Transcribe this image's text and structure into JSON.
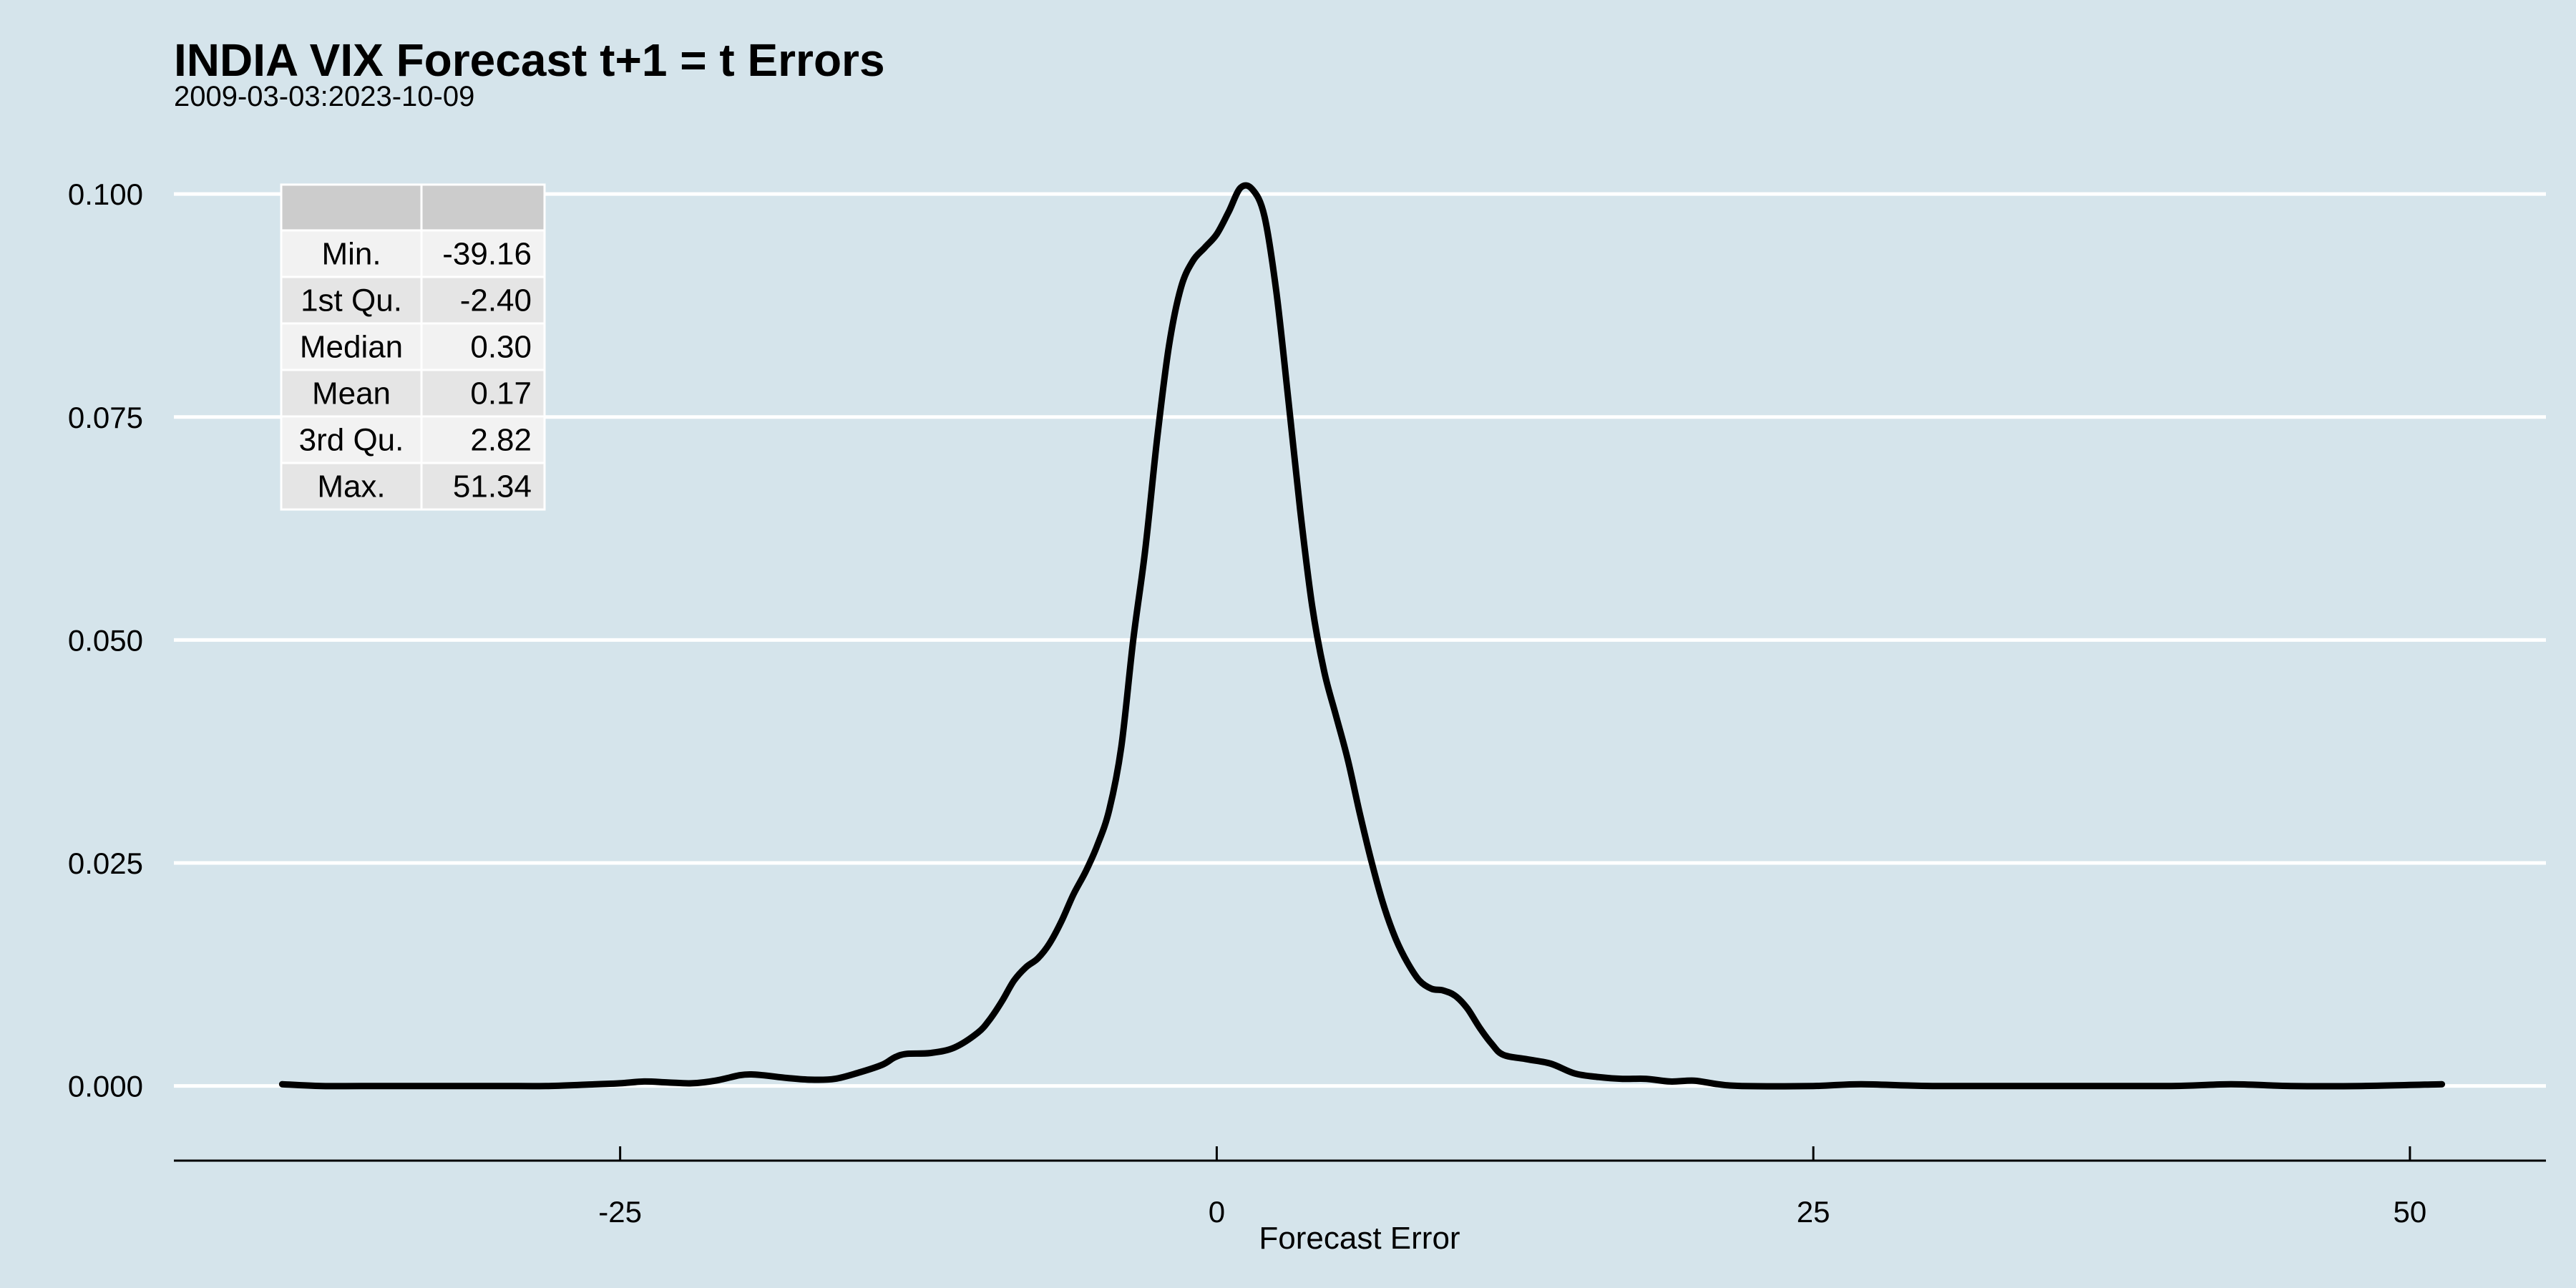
{
  "chart_data": {
    "type": "line",
    "title": "INDIA VIX Forecast t+1 = t Errors",
    "subtitle": "2009-03-03:2023-10-09",
    "xlabel": "Forecast Error",
    "ylabel": "",
    "xlim": [
      -43.7,
      55.7
    ],
    "ylim": [
      -0.005,
      0.1025
    ],
    "x_ticks": [
      -25,
      0,
      25,
      50
    ],
    "x_tick_labels": [
      "-25",
      "0",
      "25",
      "50"
    ],
    "y_ticks": [
      0,
      0.025,
      0.05,
      0.075,
      0.1
    ],
    "y_tick_labels": [
      "0.000",
      "0.025",
      "0.050",
      "0.075",
      "0.100"
    ],
    "grid": "horizontal",
    "background": "#d5e4eb",
    "line_color": "#000000",
    "series": [
      {
        "x": [
          -39.16,
          -37.5,
          -35,
          -32.5,
          -30,
          -28,
          -26,
          -25,
          -24,
          -23,
          -22,
          -21,
          -20,
          -19.5,
          -19,
          -18,
          -17,
          -16,
          -15,
          -14,
          -13.5,
          -13,
          -12,
          -11,
          -10,
          -9.5,
          -9,
          -8.5,
          -8,
          -7.5,
          -7,
          -6.5,
          -6,
          -5.5,
          -5,
          -4.5,
          -4,
          -3.5,
          -3,
          -2.5,
          -2,
          -1.5,
          -1,
          -0.5,
          0,
          0.5,
          1,
          1.5,
          2,
          2.5,
          3,
          3.5,
          4,
          4.5,
          5,
          5.5,
          6,
          6.5,
          7,
          7.5,
          8,
          8.5,
          9,
          9.5,
          10,
          10.5,
          11,
          11.5,
          12,
          13,
          14,
          15,
          16,
          17,
          18,
          19,
          20,
          21,
          22,
          25,
          27,
          30,
          35,
          40,
          42.5,
          45,
          48,
          51.34
        ],
        "y": [
          0.0002,
          0.0,
          0.0,
          0.0,
          0.0,
          0.0,
          0.0002,
          0.0003,
          0.0005,
          0.0004,
          0.0003,
          0.0006,
          0.0012,
          0.0013,
          0.0012,
          0.0009,
          0.0007,
          0.0008,
          0.0015,
          0.0024,
          0.0032,
          0.0036,
          0.0037,
          0.0043,
          0.006,
          0.0075,
          0.0095,
          0.0118,
          0.0133,
          0.0143,
          0.016,
          0.0185,
          0.0215,
          0.024,
          0.027,
          0.031,
          0.038,
          0.05,
          0.06,
          0.0725,
          0.083,
          0.0895,
          0.0925,
          0.094,
          0.0955,
          0.098,
          0.1007,
          0.1005,
          0.0975,
          0.089,
          0.077,
          0.0645,
          0.0538,
          0.0465,
          0.0415,
          0.0365,
          0.0305,
          0.025,
          0.0202,
          0.0165,
          0.0138,
          0.0118,
          0.0109,
          0.0107,
          0.0101,
          0.0087,
          0.0066,
          0.0048,
          0.0035,
          0.003,
          0.0025,
          0.0014,
          0.001,
          0.0008,
          0.0008,
          0.0005,
          0.0006,
          0.0002,
          0.0,
          0.0,
          0.0002,
          0.0,
          0.0,
          0.0,
          0.0002,
          0.0,
          0.0,
          0.0002
        ]
      }
    ]
  },
  "summary_table": {
    "header": [
      "",
      ""
    ],
    "rows": [
      {
        "label": "Min.",
        "value": "-39.16"
      },
      {
        "label": "1st Qu.",
        "value": "-2.40"
      },
      {
        "label": "Median",
        "value": "0.30"
      },
      {
        "label": "Mean",
        "value": "0.17"
      },
      {
        "label": "3rd Qu.",
        "value": "2.82"
      },
      {
        "label": "Max.",
        "value": "51.34"
      }
    ]
  }
}
